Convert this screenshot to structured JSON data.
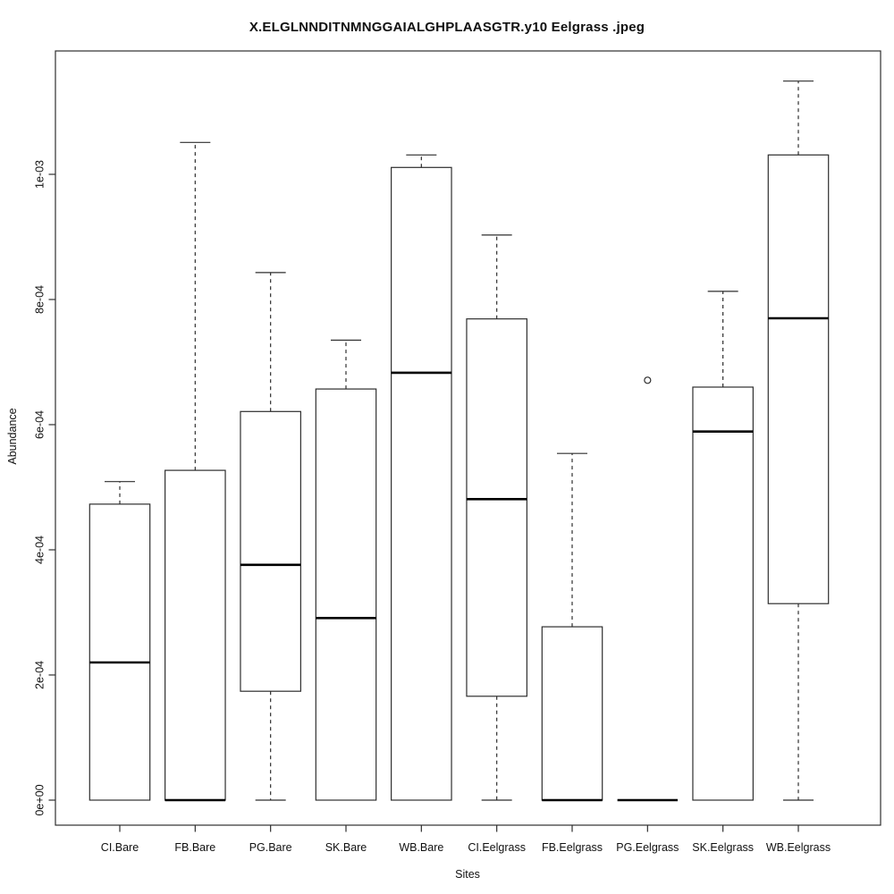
{
  "chart_data": {
    "type": "boxplot",
    "title": "X.ELGLNNDITNMNGGAIALGHPLAASGTR.y10 Eelgrass .jpeg",
    "xlabel": "Sites",
    "ylabel": "Abundance",
    "ylim": [
      0,
      0.0012
    ],
    "grid": false,
    "legend": "none",
    "line_color": "#2e2e2e",
    "median_color": "#000000",
    "y_ticks": [
      {
        "value": 0.0,
        "label": "0e+00"
      },
      {
        "value": 0.0002,
        "label": "2e-04"
      },
      {
        "value": 0.0004,
        "label": "4e-04"
      },
      {
        "value": 0.0006,
        "label": "6e-04"
      },
      {
        "value": 0.0008,
        "label": "8e-04"
      },
      {
        "value": 0.001,
        "label": "1e-03"
      }
    ],
    "groups": [
      {
        "label": "CI.Bare",
        "whisker_low": 0,
        "q1": 0,
        "median": 0.00022,
        "q3": 0.000473,
        "whisker_high": 0.000509,
        "outliers": []
      },
      {
        "label": "FB.Bare",
        "whisker_low": 0,
        "q1": 0,
        "median": 0,
        "q3": 0.000527,
        "whisker_high": 0.001051,
        "outliers": []
      },
      {
        "label": "PG.Bare",
        "whisker_low": 0,
        "q1": 0.000174,
        "median": 0.000376,
        "q3": 0.000621,
        "whisker_high": 0.000843,
        "outliers": []
      },
      {
        "label": "SK.Bare",
        "whisker_low": 0,
        "q1": 0,
        "median": 0.000291,
        "q3": 0.000657,
        "whisker_high": 0.000735,
        "outliers": []
      },
      {
        "label": "WB.Bare",
        "whisker_low": 0,
        "q1": 0,
        "median": 0.000683,
        "q3": 0.001011,
        "whisker_high": 0.001031,
        "outliers": []
      },
      {
        "label": "CI.Eelgrass",
        "whisker_low": 0,
        "q1": 0.000166,
        "median": 0.000481,
        "q3": 0.000769,
        "whisker_high": 0.000903,
        "outliers": []
      },
      {
        "label": "FB.Eelgrass",
        "whisker_low": 0,
        "q1": 0,
        "median": 0,
        "q3": 0.000277,
        "whisker_high": 0.000554,
        "outliers": []
      },
      {
        "label": "PG.Eelgrass",
        "whisker_low": 0,
        "q1": 0,
        "median": 0,
        "q3": 0,
        "whisker_high": 0,
        "outliers": [
          0.000671
        ]
      },
      {
        "label": "SK.Eelgrass",
        "whisker_low": 0,
        "q1": 0,
        "median": 0.000589,
        "q3": 0.00066,
        "whisker_high": 0.000813,
        "outliers": []
      },
      {
        "label": "WB.Eelgrass",
        "whisker_low": 0,
        "q1": 0.000314,
        "median": 0.00077,
        "q3": 0.001031,
        "whisker_high": 0.001149,
        "outliers": []
      }
    ]
  }
}
